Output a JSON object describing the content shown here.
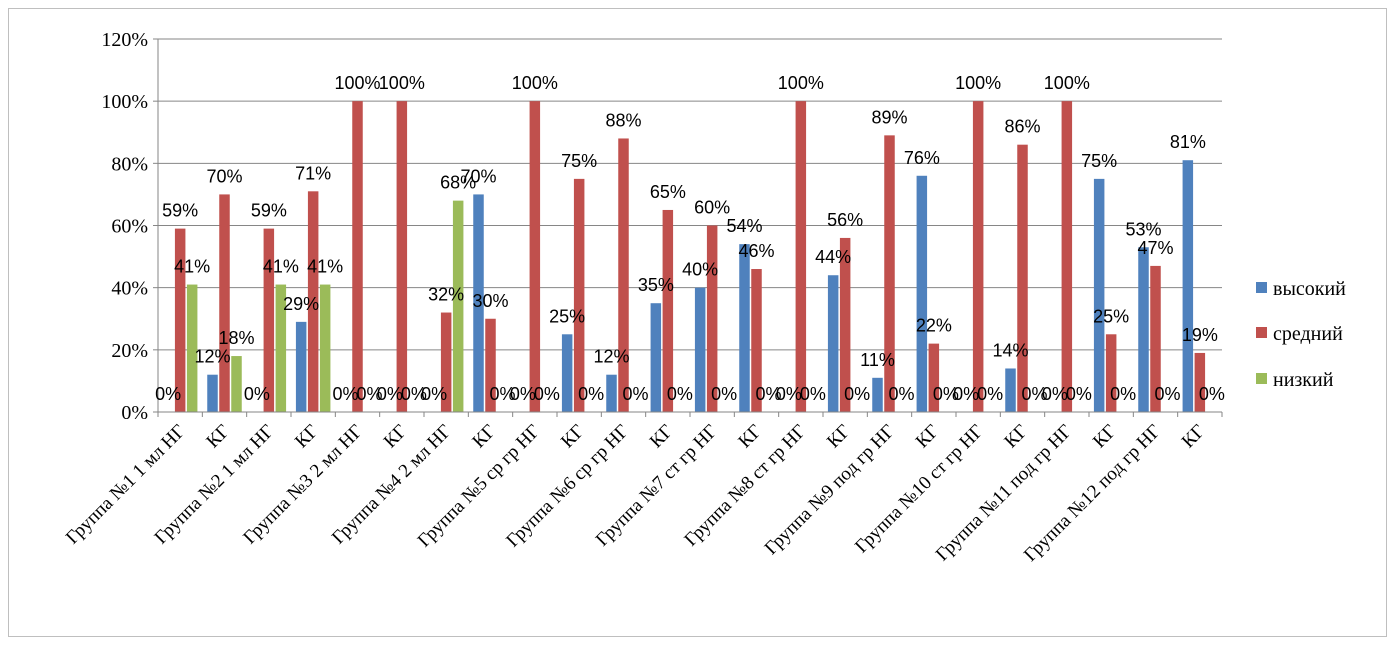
{
  "chart_data": {
    "type": "bar",
    "title": "",
    "xlabel": "",
    "ylabel": "",
    "ylim": [
      0,
      1.2
    ],
    "yticks": [
      "0%",
      "20%",
      "40%",
      "60%",
      "80%",
      "100%",
      "120%"
    ],
    "grid": "horizontal",
    "legend_position": "right",
    "categories": [
      "Группа №1 1 мл НГ",
      "КГ",
      "Группа №2 1 мл НГ",
      "КГ",
      "Группа №3 2 мл НГ",
      "КГ",
      "Группа №4 2 мл НГ",
      "КГ",
      "Группа №5 ср гр НГ",
      "КГ",
      "Группа №6 ср гр НГ",
      "КГ",
      "Группа №7 ст гр НГ",
      "КГ",
      "Группа №8 ст гр НГ",
      "КГ",
      "Группа №9 под гр НГ",
      "КГ",
      "Группа №10 ст гр НГ",
      "КГ",
      "Группа №11 под гр НГ",
      "КГ",
      "Группа №12 под гр НГ",
      "КГ"
    ],
    "series": [
      {
        "name": "высокий",
        "color": "#4f81bd",
        "values": [
          0,
          0.12,
          0,
          0.29,
          0,
          0,
          0,
          0.7,
          0,
          0.25,
          0.12,
          0.35,
          0.4,
          0.54,
          0,
          0.44,
          0.11,
          0.76,
          0,
          0.14,
          0,
          0.75,
          0.53,
          0.81
        ],
        "labels": [
          "0%",
          "12%",
          "0%",
          "29%",
          "0%",
          "0%",
          "0%",
          "70%",
          "0%",
          "25%",
          "12%",
          "35%",
          "40%",
          "54%",
          "0%",
          "44%",
          "11%",
          "76%",
          "0%",
          "14%",
          "0%",
          "75%",
          "53%",
          "81%"
        ]
      },
      {
        "name": "средний",
        "color": "#c0504d",
        "values": [
          0.59,
          0.7,
          0.59,
          0.71,
          1.0,
          1.0,
          0.32,
          0.3,
          1.0,
          0.75,
          0.88,
          0.65,
          0.6,
          0.46,
          1.0,
          0.56,
          0.89,
          0.22,
          1.0,
          0.86,
          1.0,
          0.25,
          0.47,
          0.19
        ],
        "labels": [
          "59%",
          "70%",
          "59%",
          "71%",
          "100%",
          "100%",
          "32%",
          "30%",
          "100%",
          "75%",
          "88%",
          "65%",
          "60%",
          "46%",
          "100%",
          "56%",
          "89%",
          "22%",
          "100%",
          "86%",
          "100%",
          "25%",
          "47%",
          "19%"
        ]
      },
      {
        "name": "низкий",
        "color": "#9bbb59",
        "values": [
          0.41,
          0.18,
          0.41,
          0.41,
          0,
          0,
          0.68,
          0,
          0,
          0,
          0,
          0,
          0,
          0,
          0,
          0,
          0,
          0,
          0,
          0,
          0,
          0,
          0,
          0
        ],
        "labels": [
          "41%",
          "18%",
          "41%",
          "41%",
          "0%",
          "0%",
          "68%",
          "0%",
          "0%",
          "0%",
          "0%",
          "0%",
          "0%",
          "0%",
          "0%",
          "0%",
          "0%",
          "0%",
          "0%",
          "0%",
          "0%",
          "0%",
          "0%",
          "0%"
        ]
      }
    ]
  }
}
